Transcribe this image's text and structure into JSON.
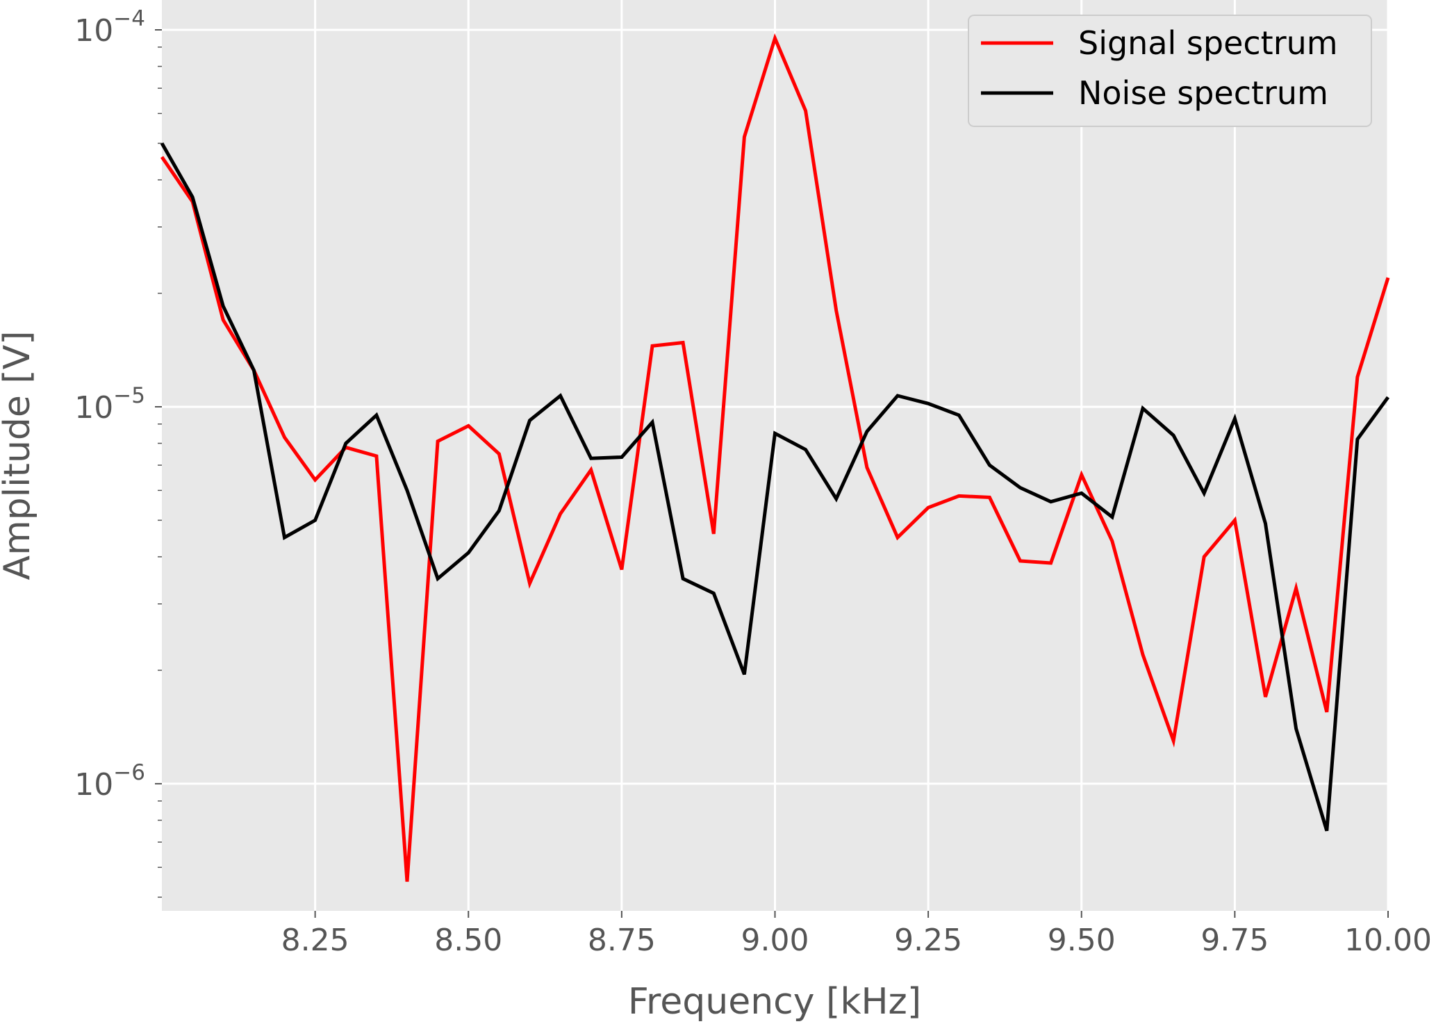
{
  "chart_data": {
    "type": "line",
    "title": "",
    "xlabel": "Frequency [kHz]",
    "ylabel": "Amplitude [V]",
    "xlim": [
      8.0,
      10.0
    ],
    "ylim": [
      4.6e-07,
      0.00012
    ],
    "yscale": "log",
    "grid": true,
    "legend_position": "top-right",
    "style": {
      "background": "#e8e8e8",
      "grid_color": "#ffffff",
      "text_color": "#555555"
    },
    "x_ticks": [
      {
        "value": 8.25,
        "label": "8.25"
      },
      {
        "value": 8.5,
        "label": "8.50"
      },
      {
        "value": 8.75,
        "label": "8.75"
      },
      {
        "value": 9.0,
        "label": "9.00"
      },
      {
        "value": 9.25,
        "label": "9.25"
      },
      {
        "value": 9.5,
        "label": "9.50"
      },
      {
        "value": 9.75,
        "label": "9.75"
      },
      {
        "value": 10.0,
        "label": "10.00"
      }
    ],
    "y_ticks": [
      {
        "value": 1e-06,
        "base": "10",
        "exp": "−6"
      },
      {
        "value": 1e-05,
        "base": "10",
        "exp": "−5"
      },
      {
        "value": 0.0001,
        "base": "10",
        "exp": "−4"
      }
    ],
    "x": [
      8.0,
      8.05,
      8.1,
      8.15,
      8.2,
      8.25,
      8.3,
      8.35,
      8.4,
      8.45,
      8.5,
      8.55,
      8.6,
      8.65,
      8.7,
      8.75,
      8.8,
      8.85,
      8.9,
      8.95,
      9.0,
      9.05,
      9.1,
      9.15,
      9.2,
      9.25,
      9.3,
      9.35,
      9.4,
      9.45,
      9.5,
      9.55,
      9.6,
      9.65,
      9.7,
      9.75,
      9.8,
      9.85,
      9.9,
      9.95,
      10.0
    ],
    "series": [
      {
        "name": "Signal spectrum",
        "color": "#ff0000",
        "values": [
          4.6e-05,
          3.5e-05,
          1.7e-05,
          1.25e-05,
          8.3e-06,
          6.4e-06,
          7.8e-06,
          7.4e-06,
          5.5e-07,
          8.1e-06,
          8.9e-06,
          7.5e-06,
          3.4e-06,
          5.2e-06,
          6.8e-06,
          3.7e-06,
          1.45e-05,
          1.48e-05,
          4.6e-06,
          5.2e-05,
          9.5e-05,
          6.1e-05,
          1.8e-05,
          6.9e-06,
          4.5e-06,
          5.4e-06,
          5.8e-06,
          5.75e-06,
          3.9e-06,
          3.85e-06,
          6.6e-06,
          4.4e-06,
          2.2e-06,
          1.3e-06,
          4e-06,
          5e-06,
          1.7e-06,
          3.3e-06,
          1.55e-06,
          1.2e-05,
          2.2e-05
        ]
      },
      {
        "name": "Noise spectrum",
        "color": "#000000",
        "values": [
          5e-05,
          3.6e-05,
          1.85e-05,
          1.25e-05,
          4.5e-06,
          5e-06,
          8e-06,
          9.5e-06,
          6e-06,
          3.5e-06,
          4.1e-06,
          5.3e-06,
          9.2e-06,
          1.07e-05,
          7.3e-06,
          7.35e-06,
          9.1e-06,
          3.5e-06,
          3.2e-06,
          1.95e-06,
          8.5e-06,
          7.7e-06,
          5.7e-06,
          8.6e-06,
          1.07e-05,
          1.02e-05,
          9.5e-06,
          7e-06,
          6.1e-06,
          5.6e-06,
          5.9e-06,
          5.1e-06,
          9.9e-06,
          8.4e-06,
          5.9e-06,
          9.3e-06,
          4.9e-06,
          1.4e-06,
          7.5e-07,
          8.2e-06,
          1.06e-05
        ]
      }
    ]
  }
}
